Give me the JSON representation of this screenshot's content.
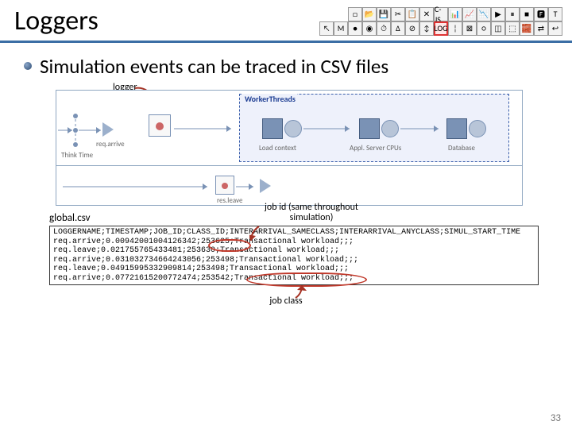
{
  "header": {
    "title": "Loggers",
    "title_color": "#000000",
    "underline_color": "#3b6ea5"
  },
  "bullet": {
    "text": "Simulation events can be traced in CSV files",
    "bullet_gradient_from": "#8aa6c9",
    "bullet_gradient_to": "#2b4970"
  },
  "toolbar": {
    "highlighted_label": "LOG",
    "rows": [
      [
        "□",
        "📂",
        "💾",
        "✂",
        "📋",
        "✕",
        "C-JS",
        "📊",
        "📈",
        "📉",
        "▶",
        "⏸",
        "■",
        "🅵",
        "T"
      ],
      [
        "↖",
        "M",
        "●",
        "◉",
        "⏱",
        "∆",
        "⊘",
        "↕",
        "LOG",
        "¦",
        "⊠",
        "○",
        "◫",
        "⬚",
        "🧱",
        "⇄",
        "↩"
      ]
    ]
  },
  "diagram": {
    "logger_label": "logger",
    "think_time_label": "Think Time",
    "req_arrive_label": "req.arrive",
    "worker_threads_label": "WorkerThreads",
    "load_context_label": "Load context",
    "appl_server_label": "Appl. Server CPUs",
    "database_label": "Database",
    "res_leave_label": "res.leave",
    "border_color": "#8fa7c1",
    "dashed_color": "#3b5fab",
    "dashed_bg": "#eef1fb",
    "node_fill": "#7a92b5",
    "node_tri_fill": "#9cb0cc"
  },
  "csv": {
    "filename": "global.csv",
    "job_id_annotation": "job id (same throughout simulation)",
    "job_class_annotation": "job class",
    "annotation_color": "#c0392b",
    "lines": [
      "LOGGERNAME;TIMESTAMP;JOB_ID;CLASS_ID;INTERARRIVAL_SAMECLASS;INTERARRIVAL_ANYCLASS;SIMUL_START_TIME",
      "req.arrive;0.00942001004126342;253625;Transactional workload;;;",
      "req.leave;0.021755765433481;253630;Transactional workload;;;",
      "req.arrive;0.031032734664243056;253498;Transactional workload;;;",
      "req.leave;0.04915995332909814;253498;Transactional workload;;;",
      "req.arrive;0.07721615200772474;253542;Transactional workload;;;"
    ]
  },
  "page_number": "33",
  "colors": {
    "red_arrow": "#a63325",
    "page_num": "#777777"
  }
}
